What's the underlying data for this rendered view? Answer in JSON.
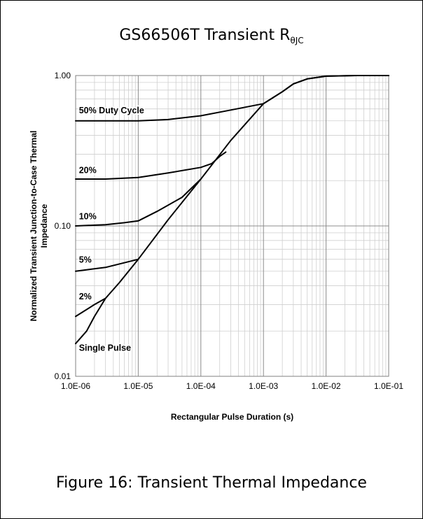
{
  "figure": {
    "title_main": "GS66506T Transient R",
    "title_sub": "θJC",
    "caption": "Figure 16: Transient Thermal Impedance"
  },
  "chart_data": {
    "type": "line",
    "xlabel": "Rectangular Pulse Duration (s)",
    "ylabel_line1": "Normalized Transient Junction-to-Case Thermal",
    "ylabel_line2": "Impedance",
    "xscale": "log",
    "yscale": "log",
    "xlim": [
      1e-06,
      0.1
    ],
    "ylim": [
      0.01,
      1.0
    ],
    "grid": true,
    "legend": "none",
    "x_tick_labels": [
      "1.0E-06",
      "1.0E-05",
      "1.0E-04",
      "1.0E-03",
      "1.0E-02",
      "1.0E-01"
    ],
    "y_tick_labels": [
      "0.01",
      "0.10",
      "1.00"
    ],
    "series": [
      {
        "name": "50% Duty Cycle",
        "label_at": [
          1.1e-06,
          0.56
        ],
        "points": [
          [
            1e-06,
            0.5
          ],
          [
            3e-06,
            0.5
          ],
          [
            1e-05,
            0.5
          ],
          [
            3e-05,
            0.51
          ],
          [
            0.0001,
            0.54
          ],
          [
            0.0003,
            0.59
          ],
          [
            0.001,
            0.65
          ],
          [
            0.002,
            0.78
          ],
          [
            0.003,
            0.88
          ],
          [
            0.005,
            0.95
          ],
          [
            0.01,
            0.99
          ],
          [
            0.03,
            1.0
          ],
          [
            0.1,
            1.0
          ]
        ]
      },
      {
        "name": "20%",
        "label_at": [
          1.1e-06,
          0.225
        ],
        "points": [
          [
            1e-06,
            0.205
          ],
          [
            3e-06,
            0.205
          ],
          [
            1e-05,
            0.21
          ],
          [
            3e-05,
            0.225
          ],
          [
            0.0001,
            0.245
          ],
          [
            0.00015,
            0.26
          ],
          [
            0.0002,
            0.29
          ],
          [
            0.00025,
            0.31
          ]
        ]
      },
      {
        "name": "10%",
        "label_at": [
          1.1e-06,
          0.111
        ],
        "points": [
          [
            1e-06,
            0.1
          ],
          [
            3e-06,
            0.102
          ],
          [
            6e-06,
            0.105
          ],
          [
            1e-05,
            0.108
          ],
          [
            2e-05,
            0.125
          ],
          [
            5e-05,
            0.155
          ],
          [
            0.0001,
            0.205
          ]
        ]
      },
      {
        "name": "5%",
        "label_at": [
          1.1e-06,
          0.057
        ],
        "points": [
          [
            1e-06,
            0.05
          ],
          [
            3e-06,
            0.053
          ],
          [
            1e-05,
            0.06
          ]
        ]
      },
      {
        "name": "2%",
        "label_at": [
          1.1e-06,
          0.0325
        ],
        "points": [
          [
            1e-06,
            0.025
          ],
          [
            2e-06,
            0.03
          ],
          [
            3e-06,
            0.033
          ]
        ]
      },
      {
        "name": "Single Pulse",
        "label_at": [
          1.1e-06,
          0.0148
        ],
        "points": [
          [
            1e-06,
            0.0165
          ],
          [
            1.5e-06,
            0.02
          ],
          [
            2e-06,
            0.025
          ],
          [
            3e-06,
            0.033
          ],
          [
            5e-06,
            0.042
          ],
          [
            1e-05,
            0.06
          ],
          [
            3e-05,
            0.11
          ],
          [
            0.0001,
            0.205
          ],
          [
            0.0003,
            0.37
          ],
          [
            0.001,
            0.65
          ],
          [
            0.002,
            0.78
          ],
          [
            0.003,
            0.88
          ],
          [
            0.005,
            0.95
          ],
          [
            0.01,
            0.99
          ],
          [
            0.03,
            1.0
          ],
          [
            0.1,
            1.0
          ]
        ]
      }
    ]
  }
}
